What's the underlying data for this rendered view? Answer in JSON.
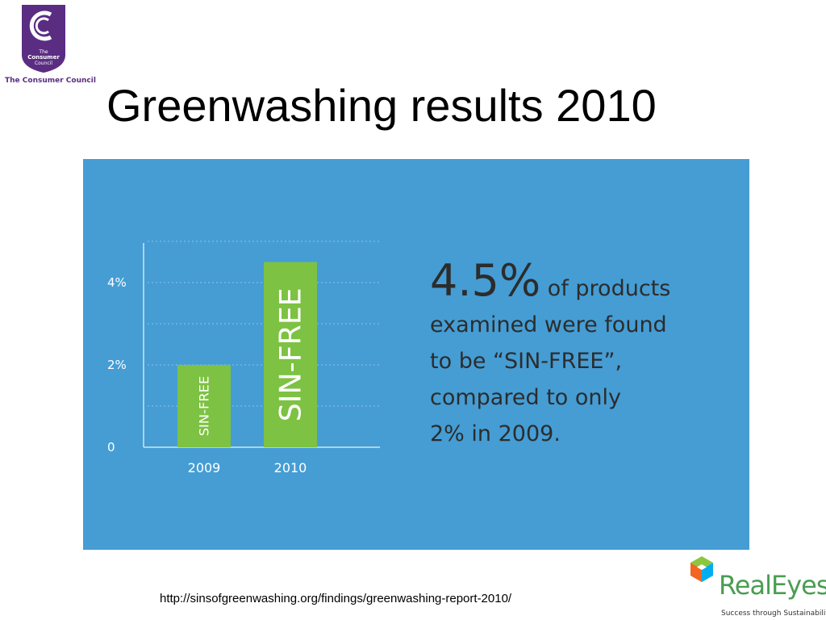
{
  "header": {
    "logo_caption": "The Consumer Council",
    "logo_text_lines": [
      "The",
      "Consumer",
      "Council"
    ],
    "title": "Greenwashing results 2010"
  },
  "chart_data": {
    "type": "bar",
    "categories": [
      "2009",
      "2010"
    ],
    "values": [
      2.0,
      4.5
    ],
    "bar_labels": [
      "SIN-FREE",
      "SIN-FREE"
    ],
    "ylim": [
      0,
      5
    ],
    "yticks": [
      0,
      2,
      4
    ],
    "ytick_labels": [
      "0",
      "2%",
      "4%"
    ],
    "grid": true,
    "colors": {
      "background": "#459dd4",
      "bar": "#7dc242",
      "text": "#2c2c2c"
    }
  },
  "stat": {
    "big": "4.5%",
    "rest_first": "of products",
    "lines": [
      "examined were found",
      "to be “SIN-FREE”,",
      "compared to only",
      "2% in 2009."
    ]
  },
  "footer": {
    "source_url": "http://sinsofgreenwashing.org/findings/greenwashing-report-2010/",
    "brand_name": "RealEyes",
    "brand_tagline": "Success through Sustainability"
  }
}
